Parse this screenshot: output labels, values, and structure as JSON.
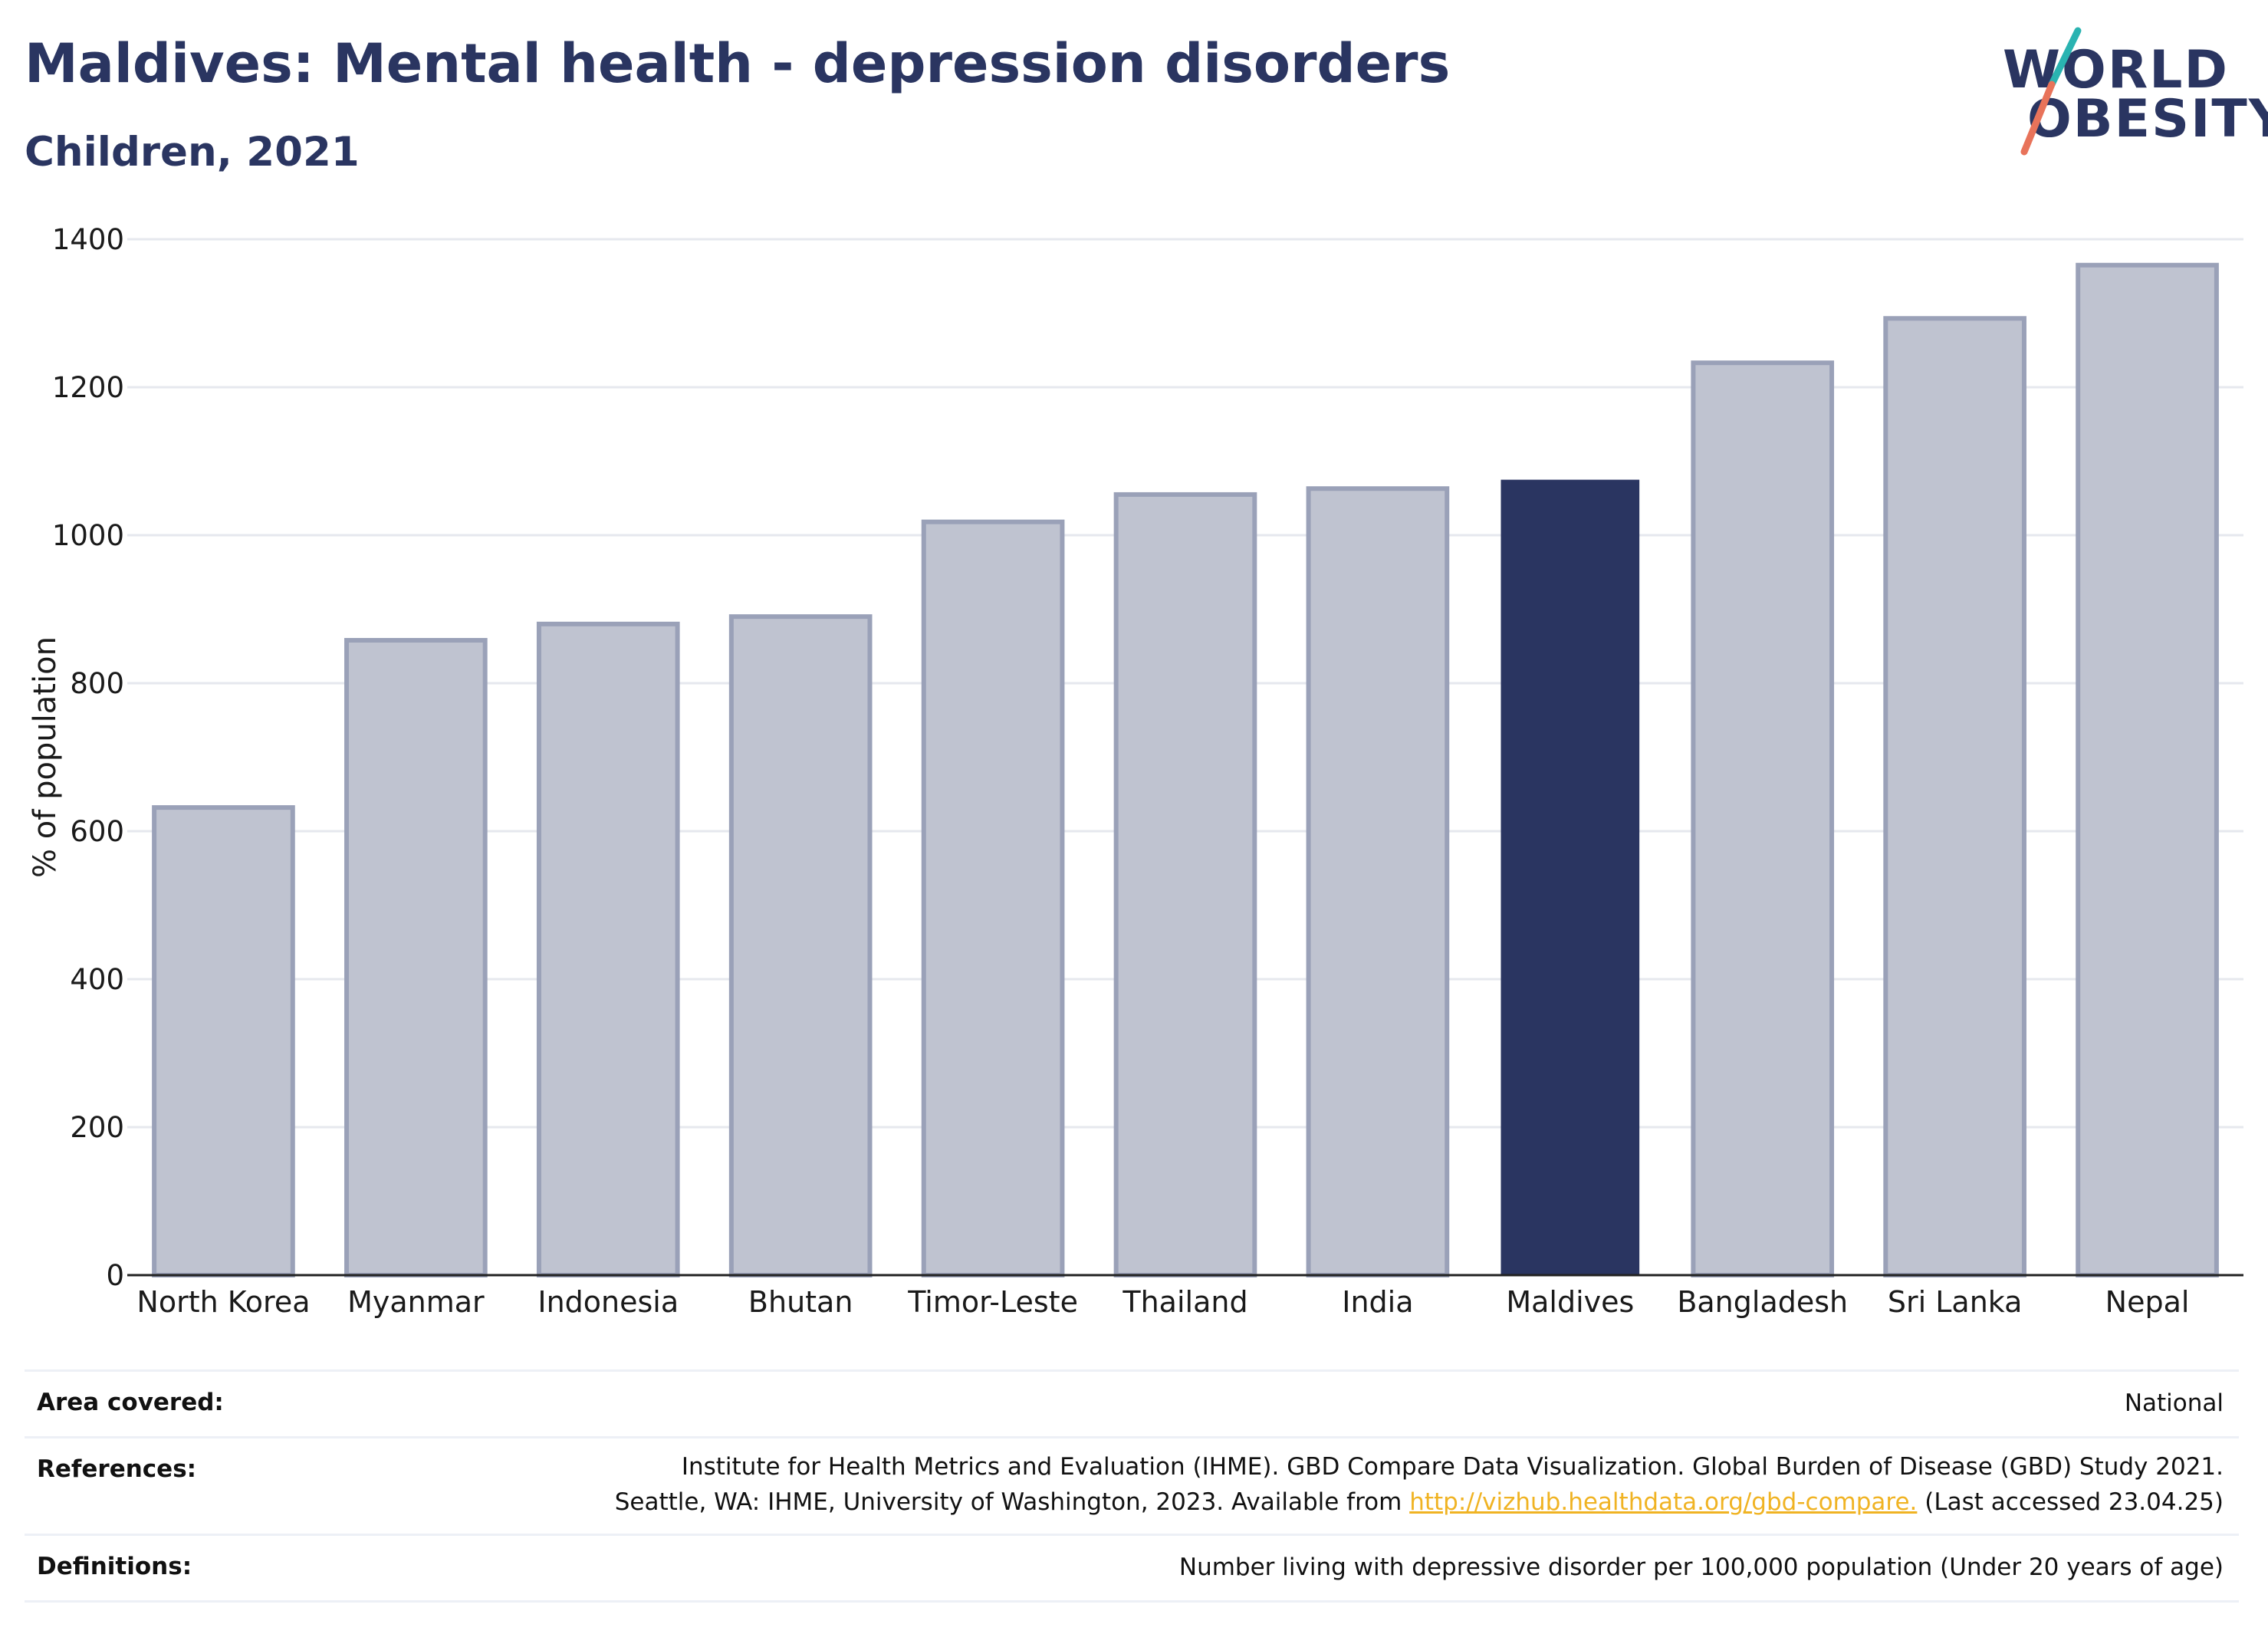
{
  "header": {
    "title": "Maldives: Mental health - depression disorders",
    "subtitle": "Children, 2021"
  },
  "logo": {
    "line1": "WORLD",
    "line2": "OBESITY"
  },
  "colors": {
    "highlight_bar": "#2a3561",
    "other_bar_fill": "#bfc3d0",
    "other_bar_stroke": "#9aa1b8",
    "text_dark": "#2a3561",
    "gridline": "#e6e8ee",
    "link": "#f0b323",
    "logo_teal": "#2ab3b1",
    "logo_coral": "#e8735a"
  },
  "chart_data": {
    "type": "bar",
    "ylabel": "% of population",
    "ylim": [
      0,
      1400
    ],
    "yticks": [
      0,
      200,
      400,
      600,
      800,
      1000,
      1200,
      1400
    ],
    "grid": true,
    "highlight": "Maldives",
    "categories": [
      "North Korea",
      "Myanmar",
      "Indonesia",
      "Bhutan",
      "Timor-Leste",
      "Thailand",
      "India",
      "Maldives",
      "Bangladesh",
      "Sri Lanka",
      "Nepal"
    ],
    "values": [
      632,
      858,
      880,
      890,
      1018,
      1055,
      1063,
      1075,
      1233,
      1293,
      1365
    ]
  },
  "meta": {
    "area_label": "Area covered:",
    "area_value": "National",
    "references_label": "References:",
    "references_line1": "Institute for Health Metrics and Evaluation (IHME). GBD Compare Data Visualization. Global Burden of Disease (GBD) Study 2021.",
    "references_line2_prefix": "Seattle, WA: IHME, University of Washington, 2023. Available from",
    "references_link": "http://vizhub.healthdata.org/gbd-compare.",
    "references_line2_suffix": "(Last accessed 23.04.25)",
    "definitions_label": "Definitions:",
    "definitions_value": "Number living with depressive disorder per 100,000 population (Under 20 years of age)"
  }
}
